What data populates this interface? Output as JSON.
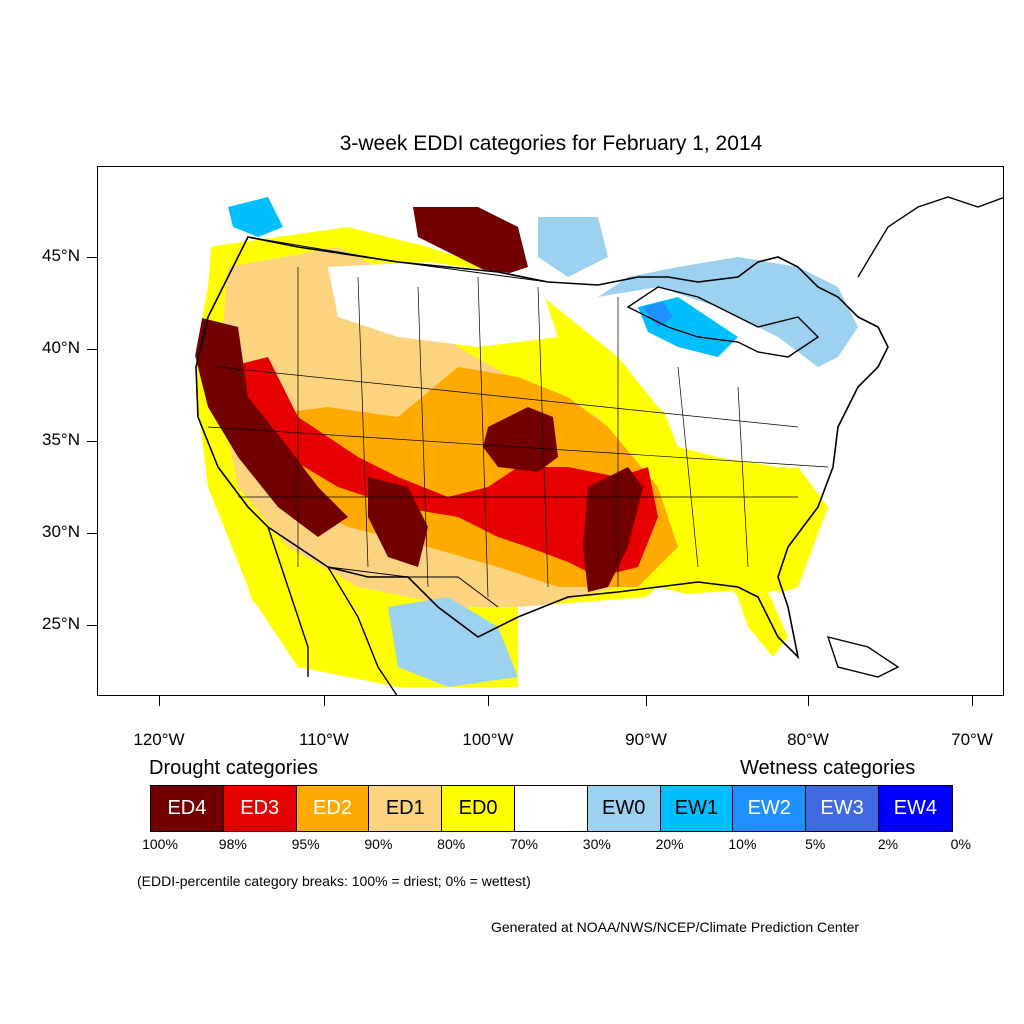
{
  "title": "3-week EDDI categories for February 1, 2014",
  "map": {
    "lat_labels": [
      "45°N",
      "40°N",
      "35°N",
      "30°N",
      "25°N"
    ],
    "lon_labels": [
      "120°W",
      "110°W",
      "100°W",
      "90°W",
      "80°W",
      "70°W"
    ]
  },
  "legend": {
    "drought_heading": "Drought categories",
    "wetness_heading": "Wetness categories",
    "categories": [
      {
        "label": "ED4",
        "color": "#730000"
      },
      {
        "label": "ED3",
        "color": "#e60000"
      },
      {
        "label": "ED2",
        "color": "#ffaa00"
      },
      {
        "label": "ED1",
        "color": "#fcd37f"
      },
      {
        "label": "ED0",
        "color": "#ffff00"
      },
      {
        "label": "",
        "color": "#ffffff"
      },
      {
        "label": "EW0",
        "color": "#9dd1f0"
      },
      {
        "label": "EW1",
        "color": "#00bfff"
      },
      {
        "label": "EW2",
        "color": "#1e90ff"
      },
      {
        "label": "EW3",
        "color": "#4169e1"
      },
      {
        "label": "EW4",
        "color": "#0000ff"
      }
    ],
    "percentiles": [
      "100%",
      "98%",
      "95%",
      "90%",
      "80%",
      "70%",
      "30%",
      "20%",
      "10%",
      "5%",
      "2%",
      "0%"
    ]
  },
  "note": "(EDDI-percentile category breaks: 100% = driest; 0% = wettest)",
  "credit": "Generated at NOAA/NWS/NCEP/Climate Prediction Center"
}
